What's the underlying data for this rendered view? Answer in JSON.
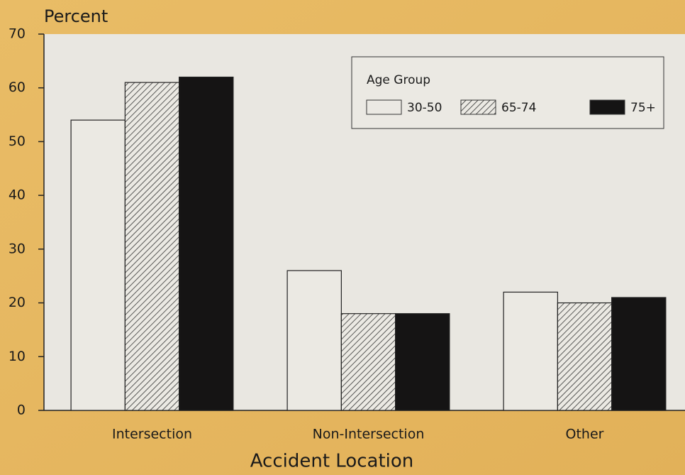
{
  "chart_data": {
    "type": "bar",
    "ylabel": "Percent",
    "xlabel": "Accident Location",
    "categories": [
      "Intersection",
      "Non-Intersection",
      "Other"
    ],
    "legend_title": "Age Group",
    "legend": "upper right",
    "series": [
      {
        "name": "30-50",
        "color": "#ebe9e3",
        "values": [
          54,
          26,
          22
        ]
      },
      {
        "name": "65-74",
        "color": "#ebe9e3",
        "hatch": true,
        "values": [
          61,
          18,
          20
        ]
      },
      {
        "name": "75+",
        "color": "#151414",
        "values": [
          62,
          18,
          21
        ]
      }
    ],
    "ylim": [
      0,
      70
    ],
    "yticks": [
      0,
      10,
      20,
      30,
      40,
      50,
      60,
      70
    ]
  }
}
